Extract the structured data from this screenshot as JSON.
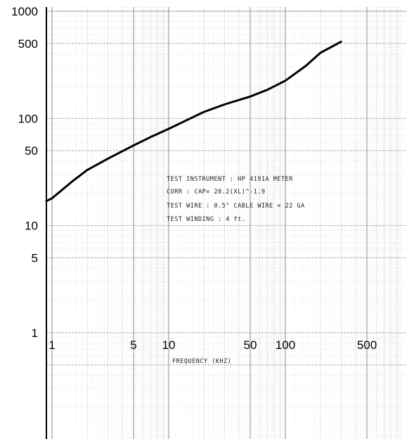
{
  "chart_data": {
    "type": "line",
    "title": "",
    "xlabel": "FREQUENCY (KHZ)",
    "ylabel": "",
    "x_scale": "log",
    "y_scale": "log",
    "xlim": [
      0.97,
      1000
    ],
    "ylim": [
      0.3,
      1000
    ],
    "grid": true,
    "x_ticks": [
      {
        "value": 1,
        "label": "1"
      },
      {
        "value": 5,
        "label": "5"
      },
      {
        "value": 10,
        "label": "10"
      },
      {
        "value": 50,
        "label": "50"
      },
      {
        "value": 100,
        "label": "100"
      },
      {
        "value": 500,
        "label": "500"
      }
    ],
    "y_ticks": [
      {
        "value": 1000,
        "label": "1000"
      },
      {
        "value": 500,
        "label": "500"
      },
      {
        "value": 100,
        "label": "100"
      },
      {
        "value": 50,
        "label": "50"
      },
      {
        "value": 10,
        "label": "10"
      },
      {
        "value": 5,
        "label": "5"
      },
      {
        "value": 1,
        "label": "1"
      }
    ],
    "series": [
      {
        "name": "",
        "color": "#000000",
        "x": [
          1,
          1.5,
          2,
          3,
          5,
          7,
          10,
          20,
          30,
          50,
          70,
          100,
          150,
          200,
          300
        ],
        "y": [
          18,
          26,
          33,
          42,
          56,
          67,
          80,
          115,
          135,
          160,
          185,
          225,
          310,
          410,
          520
        ]
      }
    ],
    "annotations": [
      "TEST INSTRUMENT : HP 4191A METER",
      "CORR : CAP= 20.2(XL)^-1.9",
      "TEST WIRE : 0.5\" CABLE WIRE = 22 GA",
      "TEST WINDING : 4 ft."
    ]
  },
  "colors": {
    "background": "#ffffff",
    "grid": "#8a8a8a",
    "curve": "#000000"
  }
}
